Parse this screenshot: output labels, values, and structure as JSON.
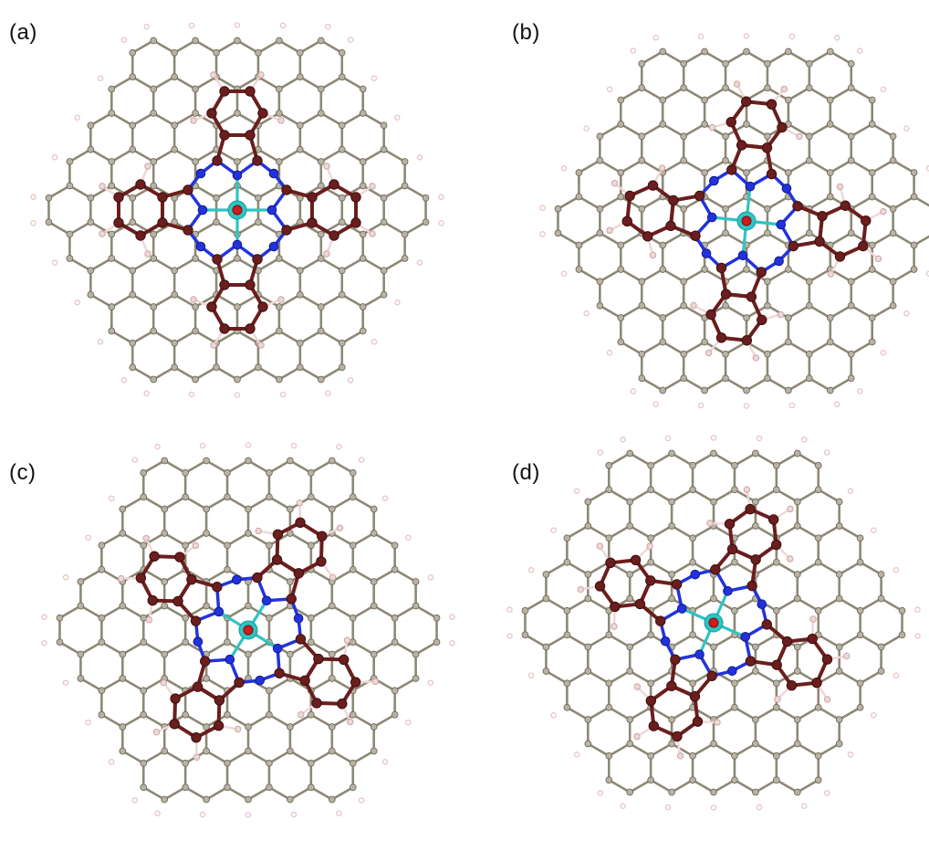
{
  "figure": {
    "panels": [
      {
        "label": "(a)",
        "mol_rot_deg": 0,
        "tilt_deg": 0
      },
      {
        "label": "(b)",
        "mol_rot_deg": 6,
        "tilt_deg": 0
      },
      {
        "label": "(c)",
        "mol_rot_deg": 32,
        "tilt_deg": 0
      },
      {
        "label": "(d)",
        "mol_rot_deg": 24,
        "tilt_deg": 0
      }
    ],
    "colors": {
      "graphene_bond": "#8d8876",
      "graphene_atom": "#b8b3a2",
      "graphene_atom_stroke": "#6e6a5c",
      "edge_hydrogen": "#e6c4c4",
      "molecule_carbon": "#6b1e1e",
      "molecule_nitrogen": "#2233dd",
      "molecule_hydrogen": "#f0d8d8",
      "metal": "#2ec4c4",
      "center_adatom": "#d01c1c"
    }
  }
}
